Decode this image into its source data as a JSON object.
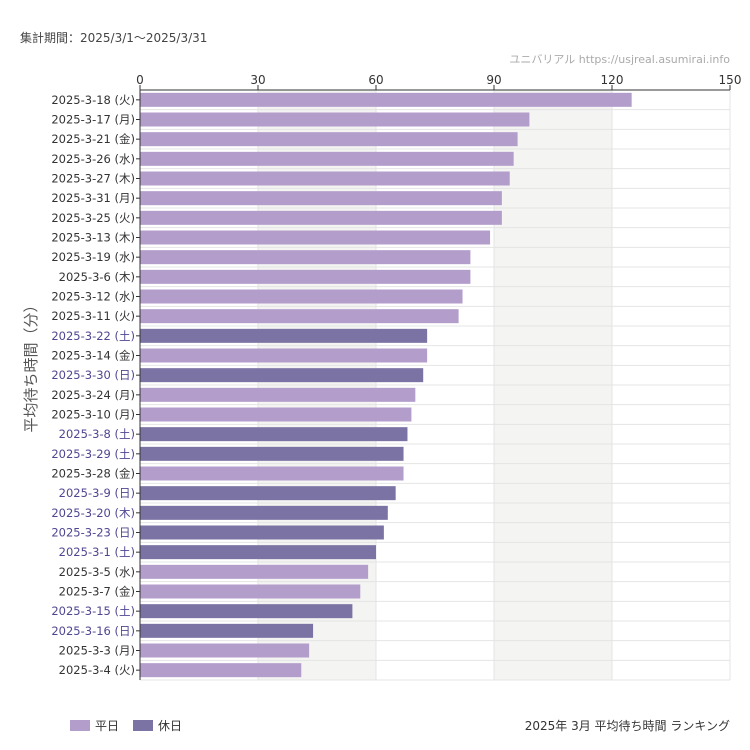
{
  "header": {
    "period": "集計期間：2025/3/1〜2025/3/31",
    "credit": "ユニバリアル  https://usjreal.asumirai.info"
  },
  "footer": {
    "title": "2025年 3月 平均待ち時間 ランキング"
  },
  "colors": {
    "weekday": "#b39dcb",
    "holiday": "#7b73a4",
    "weekday_label": "#333333",
    "holiday_label": "#4e4690",
    "band": "#f4f4f2"
  },
  "chart_data": {
    "type": "bar",
    "orientation": "horizontal",
    "ylabel": "平均待ち時間（分）",
    "xlim": [
      0,
      150
    ],
    "xticks": [
      "0",
      "30",
      "60",
      "90",
      "120",
      "150"
    ],
    "grid": true,
    "legend_placement": "bottom-left",
    "legend": [
      {
        "name": "平日",
        "key": "weekday"
      },
      {
        "name": "休日",
        "key": "holiday"
      }
    ],
    "categories": [
      "2025-3-18 (火)",
      "2025-3-17 (月)",
      "2025-3-21 (金)",
      "2025-3-26 (水)",
      "2025-3-27 (木)",
      "2025-3-31 (月)",
      "2025-3-25 (火)",
      "2025-3-13 (木)",
      "2025-3-19 (水)",
      "2025-3-6 (木)",
      "2025-3-12 (水)",
      "2025-3-11 (火)",
      "2025-3-22 (土)",
      "2025-3-14 (金)",
      "2025-3-30 (日)",
      "2025-3-24 (月)",
      "2025-3-10 (月)",
      "2025-3-8 (土)",
      "2025-3-29 (土)",
      "2025-3-28 (金)",
      "2025-3-9 (日)",
      "2025-3-20 (木)",
      "2025-3-23 (日)",
      "2025-3-1 (土)",
      "2025-3-5 (水)",
      "2025-3-7 (金)",
      "2025-3-15 (土)",
      "2025-3-16 (日)",
      "2025-3-3 (月)",
      "2025-3-4 (火)"
    ],
    "values": [
      125,
      99,
      96,
      95,
      94,
      92,
      92,
      89,
      84,
      84,
      82,
      81,
      73,
      73,
      72,
      70,
      69,
      68,
      67,
      67,
      65,
      63,
      62,
      60,
      58,
      56,
      54,
      44,
      43,
      41
    ],
    "type_of_day": [
      "weekday",
      "weekday",
      "weekday",
      "weekday",
      "weekday",
      "weekday",
      "weekday",
      "weekday",
      "weekday",
      "weekday",
      "weekday",
      "weekday",
      "holiday",
      "weekday",
      "holiday",
      "weekday",
      "weekday",
      "holiday",
      "holiday",
      "weekday",
      "holiday",
      "holiday",
      "holiday",
      "holiday",
      "weekday",
      "weekday",
      "holiday",
      "holiday",
      "weekday",
      "weekday"
    ]
  }
}
